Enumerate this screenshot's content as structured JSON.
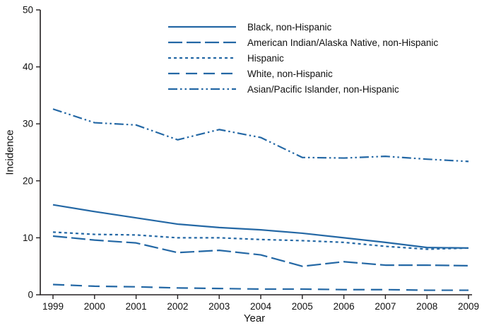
{
  "figure": {
    "accent_color": "#2468a5",
    "axis_color": "#231f20",
    "text_color": "#111111"
  },
  "chart_data": {
    "type": "line",
    "title": "",
    "xlabel": "Year",
    "ylabel": "Incidence",
    "x": [
      1999,
      2000,
      2001,
      2002,
      2003,
      2004,
      2005,
      2006,
      2007,
      2008,
      2009
    ],
    "ylim": [
      0,
      50
    ],
    "yticks": [
      0,
      10,
      20,
      30,
      40,
      50
    ],
    "grid": false,
    "legend_position": "top-center-inside",
    "series": [
      {
        "name": "Black, non-Hispanic",
        "dash": "solid",
        "values": [
          15.8,
          14.6,
          13.5,
          12.4,
          11.8,
          11.4,
          10.8,
          10.0,
          9.2,
          8.3,
          8.2
        ]
      },
      {
        "name": "American Indian/Alaska Native, non-Hispanic",
        "dash": "long-dash",
        "values": [
          10.3,
          9.6,
          9.1,
          7.4,
          7.8,
          7.0,
          5.0,
          5.8,
          5.2,
          5.2,
          5.1
        ]
      },
      {
        "name": "Hispanic",
        "dash": "short-dash",
        "values": [
          11.0,
          10.6,
          10.5,
          10.0,
          10.0,
          9.7,
          9.5,
          9.2,
          8.5,
          8.0,
          8.2
        ]
      },
      {
        "name": "White, non-Hispanic",
        "dash": "spaced-dash",
        "values": [
          1.8,
          1.5,
          1.4,
          1.2,
          1.1,
          1.0,
          1.0,
          0.9,
          0.9,
          0.8,
          0.8
        ]
      },
      {
        "name": "Asian/Pacific Islander, non-Hispanic",
        "dash": "dash-dot-dot",
        "values": [
          32.6,
          30.2,
          29.8,
          27.2,
          29.0,
          27.6,
          24.1,
          24.0,
          24.3,
          23.8,
          23.4
        ]
      }
    ]
  }
}
